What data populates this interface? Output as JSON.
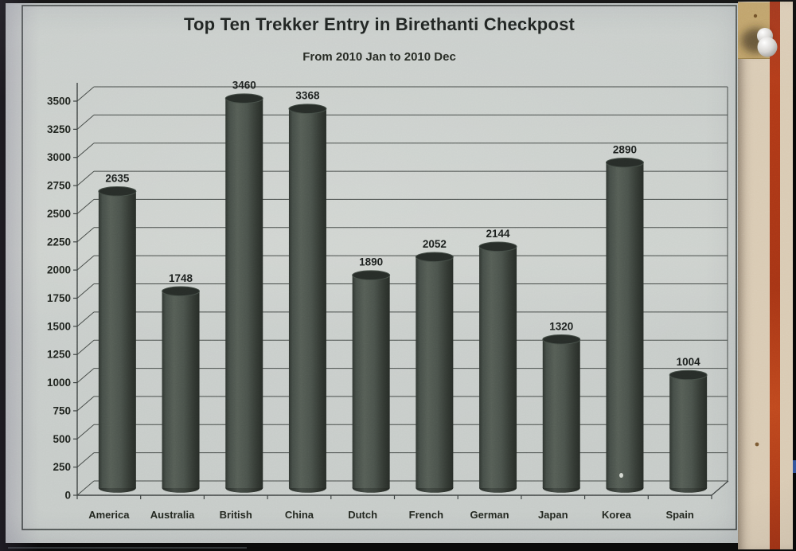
{
  "chart_data": {
    "type": "bar",
    "variant": "3d-cylinder",
    "title": "Top Ten Trekker Entry in Birethanti Checkpost",
    "subtitle": "From 2010 Jan to 2010 Dec",
    "categories": [
      "America",
      "Australia",
      "British",
      "China",
      "Dutch",
      "French",
      "German",
      "Japan",
      "Korea",
      "Spain"
    ],
    "values": [
      2635,
      1748,
      3460,
      3368,
      1890,
      2052,
      2144,
      1320,
      2890,
      1004
    ],
    "value_labels": true,
    "ylim": [
      0,
      3500
    ],
    "ytick_step": 250,
    "yticks": [
      0,
      250,
      500,
      750,
      1000,
      1250,
      1500,
      1750,
      2000,
      2250,
      2500,
      2750,
      3000,
      3250,
      3500
    ],
    "xlabel": "",
    "ylabel": "",
    "grid": true,
    "legend": "none",
    "colors": {
      "paper": "#c6cbc8",
      "grid": "#454a47",
      "axis": "#3c4140",
      "border": "#3c4140",
      "text": "#20241f",
      "bar_mid": "#555d55",
      "bar_edge": "#262b26",
      "bar_top": "#272c28"
    }
  },
  "photo": {
    "frame_color": "#0a0a0a",
    "board": {
      "base_color": "#d9cab3",
      "tan_patch_color": "#bd9f66",
      "red_stripe_color": "#a93417",
      "edge_color": "#060606",
      "blue_mark_color": "#31539b",
      "pin": "white-pushpin"
    }
  }
}
